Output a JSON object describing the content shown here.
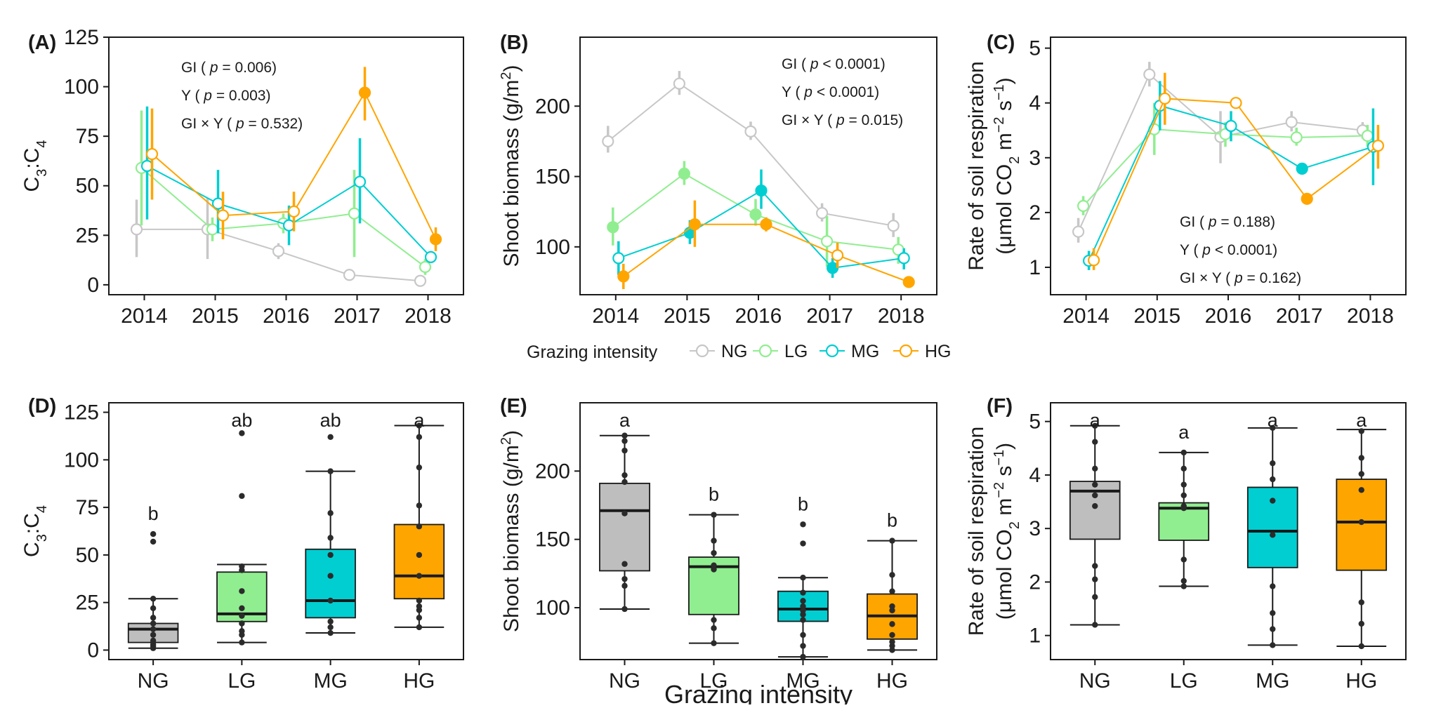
{
  "groups": [
    "NG",
    "LG",
    "MG",
    "HG"
  ],
  "colors": {
    "NG": "#c7c7c7",
    "LG": "#90ee90",
    "MG": "#00ced1",
    "HG": "#ffa500"
  },
  "box_fill": {
    "NG": "#bebebe",
    "LG": "#90ee90",
    "MG": "#00ced1",
    "HG": "#ffa500"
  },
  "legend": {
    "title": "Grazing intensity",
    "items": [
      {
        "key": "NG",
        "label": "NG"
      },
      {
        "key": "LG",
        "label": "LG"
      },
      {
        "key": "MG",
        "label": "MG"
      },
      {
        "key": "HG",
        "label": "HG"
      }
    ]
  },
  "shared_xlabel": "Grazing intensity",
  "chart_data": [
    {
      "panel": "(A)",
      "type": "line",
      "ylabel": "C3:C4",
      "x": [
        2014,
        2015,
        2016,
        2017,
        2018
      ],
      "ylim": [
        -5,
        125
      ],
      "yticks": [
        0,
        25,
        50,
        75,
        100,
        125
      ],
      "stats": [
        {
          "term": "GI",
          "p": "p = 0.006"
        },
        {
          "term": "Y",
          "p": "p = 0.003"
        },
        {
          "term": "GI × Y",
          "p": "p = 0.532"
        }
      ],
      "series": [
        {
          "name": "NG",
          "values": [
            28,
            28,
            17,
            5,
            2
          ],
          "lower": [
            14,
            13,
            13,
            4,
            1
          ],
          "upper": [
            43,
            44,
            21,
            6,
            3
          ],
          "filled": [
            false,
            false,
            false,
            false,
            false
          ]
        },
        {
          "name": "LG",
          "values": [
            59,
            28,
            31,
            36,
            9
          ],
          "lower": [
            30,
            22,
            26,
            14,
            5
          ],
          "upper": [
            88,
            34,
            36,
            58,
            13
          ],
          "filled": [
            false,
            false,
            false,
            false,
            false
          ]
        },
        {
          "name": "MG",
          "values": [
            60,
            41,
            30,
            52,
            14
          ],
          "lower": [
            33,
            26,
            20,
            31,
            11
          ],
          "upper": [
            90,
            58,
            40,
            74,
            17
          ],
          "filled": [
            false,
            false,
            false,
            false,
            false
          ]
        },
        {
          "name": "HG",
          "values": [
            66,
            35,
            37,
            97,
            23
          ],
          "lower": [
            43,
            23,
            27,
            83,
            17
          ],
          "upper": [
            89,
            47,
            47,
            110,
            29
          ],
          "filled": [
            false,
            false,
            false,
            true,
            true
          ]
        }
      ]
    },
    {
      "panel": "(B)",
      "type": "line",
      "ylabel": "Shoot biomass (g/m2)",
      "x": [
        2014,
        2015,
        2016,
        2017,
        2018
      ],
      "ylim": [
        66,
        249
      ],
      "yticks": [
        100,
        150,
        200
      ],
      "stats": [
        {
          "term": "GI",
          "p": "p < 0.0001"
        },
        {
          "term": "Y",
          "p": "p < 0.0001"
        },
        {
          "term": "GI × Y",
          "p": "p = 0.015"
        }
      ],
      "series": [
        {
          "name": "NG",
          "values": [
            175,
            216,
            182,
            124,
            115
          ],
          "lower": [
            167,
            208,
            176,
            118,
            107
          ],
          "upper": [
            186,
            225,
            189,
            131,
            124
          ],
          "filled": [
            false,
            false,
            false,
            false,
            false
          ]
        },
        {
          "name": "LG",
          "values": [
            114,
            152,
            123,
            104,
            98
          ],
          "lower": [
            101,
            144,
            115,
            86,
            88
          ],
          "upper": [
            128,
            161,
            134,
            122,
            107
          ],
          "filled": [
            true,
            true,
            true,
            false,
            false
          ]
        },
        {
          "name": "MG",
          "values": [
            92,
            110,
            140,
            85,
            92
          ],
          "lower": [
            80,
            102,
            127,
            78,
            84
          ],
          "upper": [
            104,
            119,
            155,
            92,
            99
          ],
          "filled": [
            false,
            true,
            true,
            true,
            false
          ]
        },
        {
          "name": "HG",
          "values": [
            79,
            116,
            116,
            94,
            75
          ],
          "lower": [
            70,
            100,
            111,
            85,
            72
          ],
          "upper": [
            88,
            133,
            121,
            103,
            78
          ],
          "filled": [
            true,
            true,
            true,
            false,
            true
          ]
        }
      ]
    },
    {
      "panel": "(C)",
      "type": "line",
      "ylabel": "Rate of soil respiration (μmol CO2 m-2 s-1)",
      "x": [
        2014,
        2015,
        2016,
        2017,
        2018
      ],
      "ylim": [
        0.5,
        5.2
      ],
      "yticks": [
        1,
        2,
        3,
        4,
        5
      ],
      "stats": [
        {
          "term": "GI",
          "p": "p = 0.188"
        },
        {
          "term": "Y",
          "p": "p < 0.0001"
        },
        {
          "term": "GI × Y",
          "p": "p = 0.162"
        }
      ],
      "series": [
        {
          "name": "NG",
          "values": [
            1.65,
            4.52,
            3.38,
            3.65,
            3.5
          ],
          "lower": [
            1.45,
            4.3,
            2.9,
            3.48,
            3.35
          ],
          "upper": [
            1.9,
            4.75,
            3.85,
            3.85,
            3.65
          ],
          "filled": [
            false,
            false,
            false,
            false,
            false
          ]
        },
        {
          "name": "LG",
          "values": [
            2.12,
            3.52,
            3.43,
            3.37,
            3.4
          ],
          "lower": [
            1.95,
            3.05,
            3.2,
            3.22,
            3.2
          ],
          "upper": [
            2.3,
            4.0,
            3.65,
            3.55,
            3.6
          ],
          "filled": [
            false,
            false,
            false,
            false,
            false
          ]
        },
        {
          "name": "MG",
          "values": [
            1.12,
            3.95,
            3.58,
            2.8,
            3.2
          ],
          "lower": [
            0.95,
            3.5,
            3.3,
            2.7,
            2.5
          ],
          "upper": [
            1.3,
            4.4,
            3.85,
            2.9,
            3.9
          ],
          "filled": [
            false,
            false,
            false,
            true,
            false
          ]
        },
        {
          "name": "HG",
          "values": [
            1.13,
            4.08,
            4.0,
            2.25,
            3.22
          ],
          "lower": [
            0.95,
            3.6,
            3.9,
            2.15,
            2.8
          ],
          "upper": [
            1.35,
            4.55,
            4.1,
            2.35,
            3.6
          ],
          "filled": [
            false,
            false,
            false,
            true,
            false
          ]
        }
      ]
    },
    {
      "panel": "(D)",
      "type": "box",
      "ylabel": "C3:C4",
      "categories": [
        "NG",
        "LG",
        "MG",
        "HG"
      ],
      "ylim": [
        -5,
        130
      ],
      "yticks": [
        0,
        25,
        50,
        75,
        100,
        125
      ],
      "letters": [
        "b",
        "ab",
        "ab",
        "a"
      ],
      "boxes": [
        {
          "min": 1,
          "q1": 4,
          "median": 11,
          "q3": 14,
          "max": 27,
          "outliers": [
            57,
            61
          ],
          "points": [
            1,
            2,
            3,
            5,
            8,
            11,
            14,
            17,
            22,
            27,
            57,
            61
          ]
        },
        {
          "min": 4,
          "q1": 15,
          "median": 19,
          "q3": 41,
          "max": 45,
          "outliers": [
            81,
            114
          ],
          "points": [
            4,
            8,
            10,
            14,
            18,
            22,
            31,
            42,
            44,
            81,
            114
          ]
        },
        {
          "min": 9,
          "q1": 17,
          "median": 26,
          "q3": 53,
          "max": 94,
          "outliers": [
            112
          ],
          "points": [
            9,
            12,
            15,
            26,
            39,
            50,
            59,
            72,
            94,
            112
          ]
        },
        {
          "min": 12,
          "q1": 27,
          "median": 39,
          "q3": 66,
          "max": 118,
          "outliers": [],
          "points": [
            12,
            17,
            21,
            23,
            26,
            39,
            50,
            65,
            76,
            96,
            112,
            118
          ]
        }
      ]
    },
    {
      "panel": "(E)",
      "type": "box",
      "ylabel": "Shoot biomass (g/m2)",
      "categories": [
        "NG",
        "LG",
        "MG",
        "HG"
      ],
      "ylim": [
        62,
        250
      ],
      "yticks": [
        100,
        150,
        200
      ],
      "letters": [
        "a",
        "b",
        "b",
        "b"
      ],
      "boxes": [
        {
          "min": 99,
          "q1": 127,
          "median": 171,
          "q3": 191,
          "max": 226,
          "outliers": [],
          "points": [
            99,
            116,
            121,
            132,
            169,
            192,
            197,
            215,
            222,
            226
          ]
        },
        {
          "min": 74,
          "q1": 95,
          "median": 130,
          "q3": 137,
          "max": 168,
          "outliers": [],
          "points": [
            74,
            85,
            91,
            128,
            131,
            140,
            149,
            168
          ]
        },
        {
          "min": 64,
          "q1": 90,
          "median": 99,
          "q3": 112,
          "max": 122,
          "outliers": [
            147,
            161
          ],
          "points": [
            64,
            72,
            80,
            91,
            95,
            98,
            101,
            105,
            111,
            122,
            147,
            161
          ]
        },
        {
          "min": 69,
          "q1": 77,
          "median": 94,
          "q3": 110,
          "max": 149,
          "outliers": [],
          "points": [
            69,
            72,
            75,
            80,
            88,
            98,
            101,
            112,
            124,
            149
          ]
        }
      ]
    },
    {
      "panel": "(F)",
      "type": "box",
      "ylabel": "Rate of soil respiration (μmol CO2 m-2 s-1)",
      "categories": [
        "NG",
        "LG",
        "MG",
        "HG"
      ],
      "ylim": [
        0.55,
        5.35
      ],
      "yticks": [
        1,
        2,
        3,
        4,
        5
      ],
      "letters": [
        "a",
        "a",
        "a",
        "a"
      ],
      "boxes": [
        {
          "min": 1.2,
          "q1": 2.8,
          "median": 3.7,
          "q3": 3.88,
          "max": 4.92,
          "outliers": [],
          "points": [
            1.2,
            1.72,
            2.05,
            2.3,
            3.42,
            3.62,
            3.82,
            4.12,
            4.62,
            4.92
          ]
        },
        {
          "min": 1.92,
          "q1": 2.78,
          "median": 3.38,
          "q3": 3.48,
          "max": 4.42,
          "outliers": [],
          "points": [
            1.92,
            2.02,
            2.42,
            3.38,
            3.42,
            3.62,
            3.82,
            4.12,
            4.42
          ]
        },
        {
          "min": 0.82,
          "q1": 2.27,
          "median": 2.95,
          "q3": 3.77,
          "max": 4.88,
          "outliers": [],
          "points": [
            0.82,
            1.12,
            1.42,
            1.92,
            2.88,
            3.52,
            3.92,
            4.22,
            4.88
          ]
        },
        {
          "min": 0.8,
          "q1": 2.22,
          "median": 3.12,
          "q3": 3.92,
          "max": 4.85,
          "outliers": [],
          "points": [
            0.8,
            1.22,
            1.62,
            3.12,
            3.72,
            4.02,
            4.32,
            4.82
          ]
        }
      ]
    }
  ]
}
